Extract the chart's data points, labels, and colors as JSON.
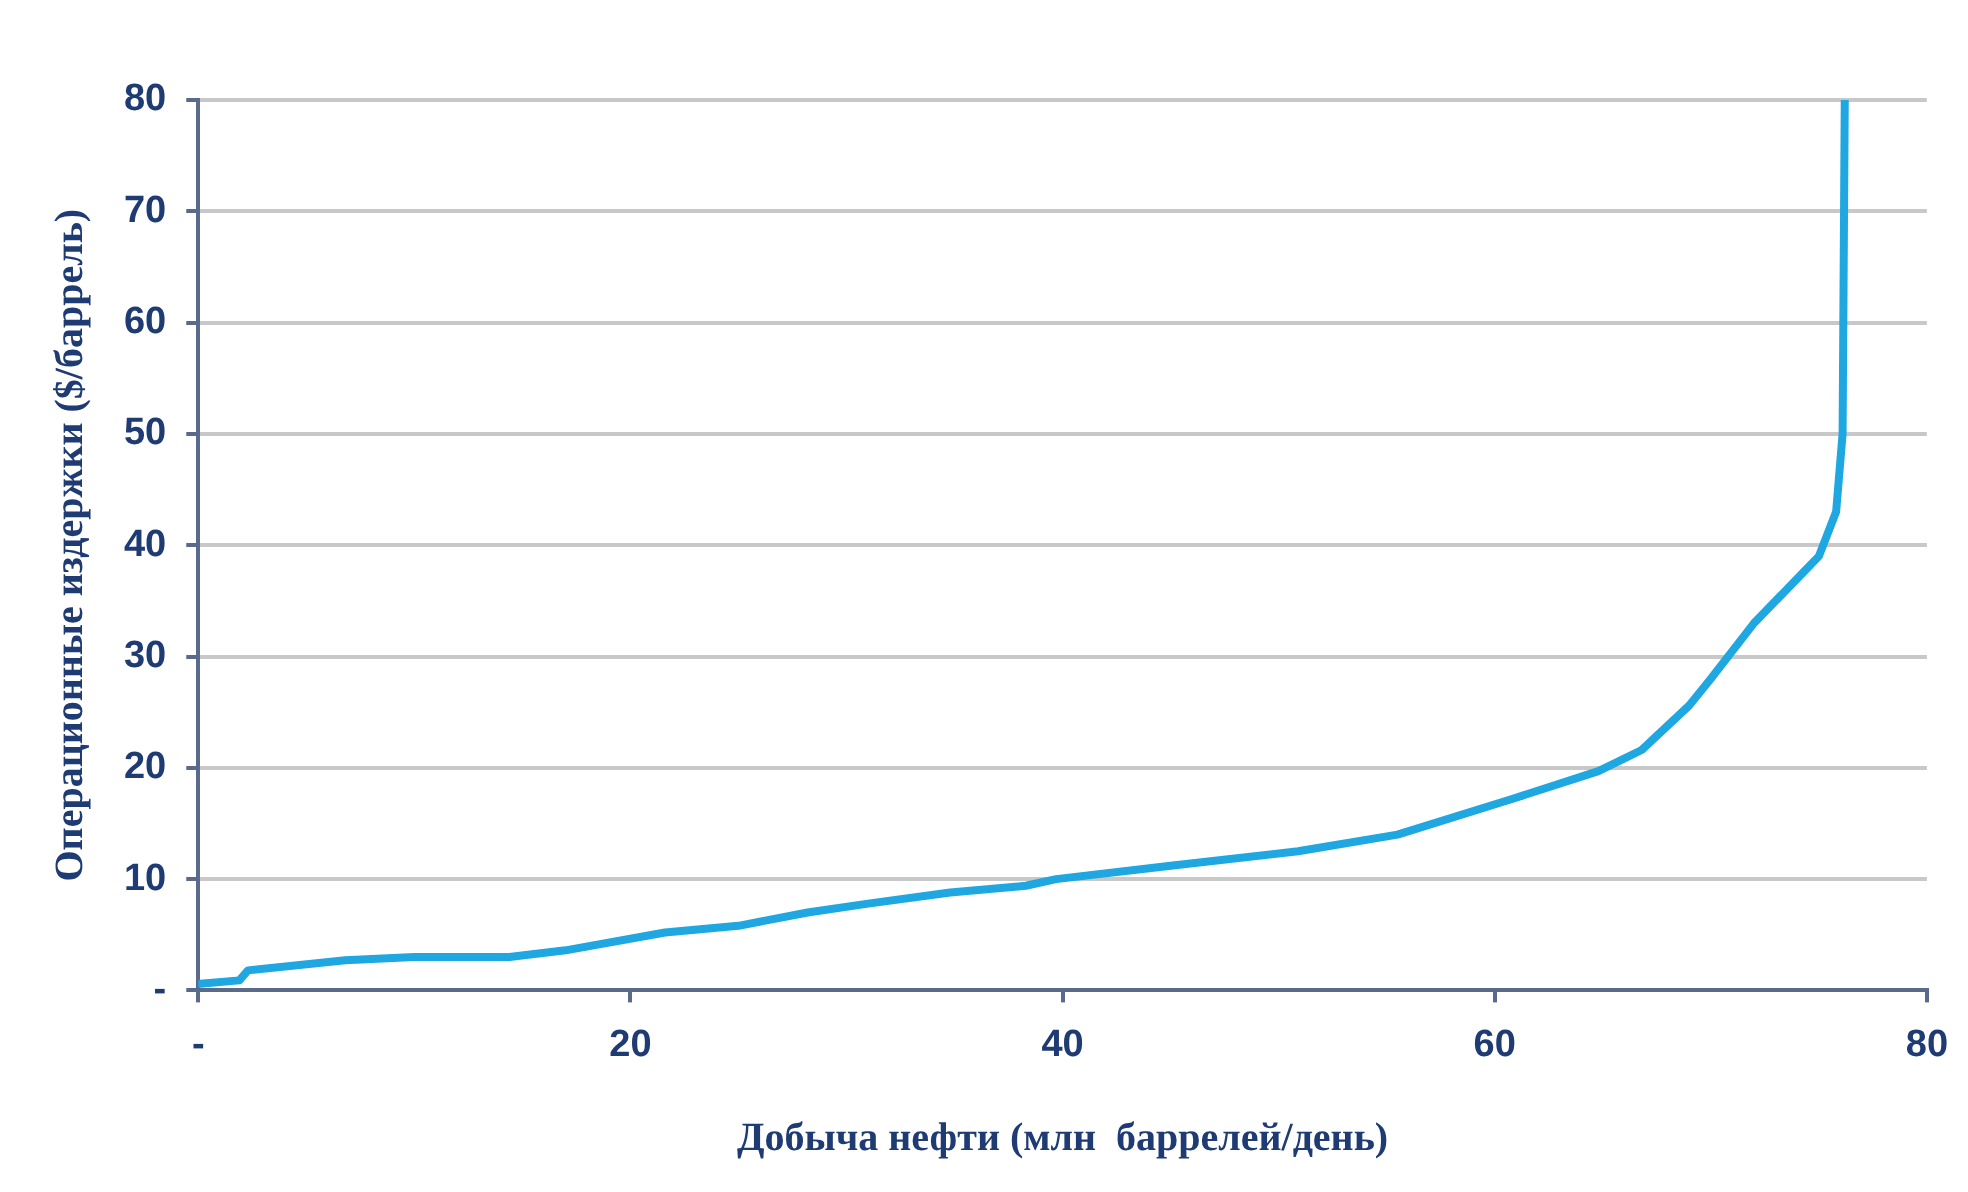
{
  "chart_data": {
    "type": "line",
    "xlabel": "Добыча нефти (млн  баррелей/день)",
    "ylabel": "Операционные издержки ($/баррель)",
    "x": [
      0.1,
      1.9,
      2.3,
      6.8,
      10,
      14.4,
      17,
      21.6,
      25,
      28.2,
      31,
      34.8,
      38.3,
      39.7,
      45,
      50.9,
      55.5,
      60.8,
      64.8,
      66.8,
      69,
      70,
      72,
      74,
      75,
      75.8,
      76.1,
      76.2
    ],
    "series": [
      {
        "color": "#1ea7e0",
        "values": [
          0.6,
          0.9,
          1.8,
          2.7,
          3.0,
          3.0,
          3.6,
          5.2,
          5.8,
          7.0,
          7.8,
          8.8,
          9.4,
          10,
          11.2,
          12.5,
          14,
          17.2,
          19.7,
          21.6,
          25.6,
          28,
          33,
          37,
          39,
          43,
          50,
          80
        ]
      }
    ],
    "xlim": [
      0,
      80
    ],
    "xticks": [
      {
        "value": 0,
        "label": "-"
      },
      20,
      40,
      60,
      80
    ],
    "ylim": [
      0,
      80
    ],
    "yticks": [
      {
        "value": 0,
        "label": "-"
      },
      10,
      20,
      30,
      40,
      50,
      60,
      70,
      80
    ],
    "grid": "y",
    "legend": false,
    "marker": "none",
    "line_style": "solid"
  }
}
